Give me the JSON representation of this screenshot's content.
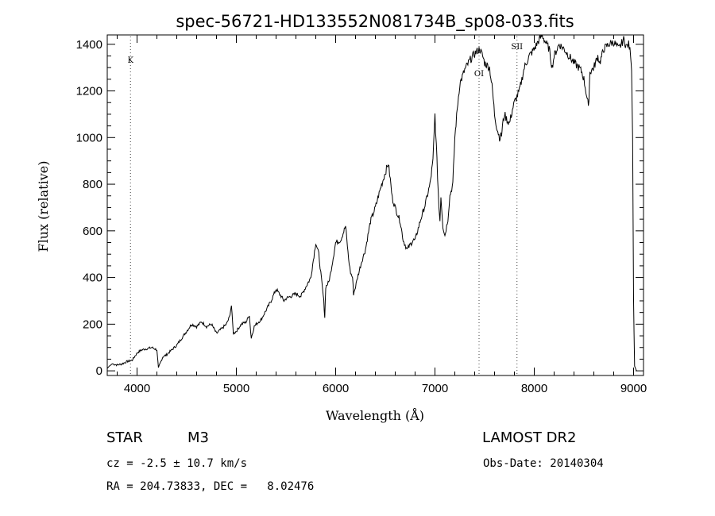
{
  "chart_data": {
    "type": "line",
    "title": "spec-56721-HD133552N081734B_sp08-033.fits",
    "xlabel": "Wavelength (Å)",
    "ylabel": "Flux (relative)",
    "xlim": [
      3700,
      9100
    ],
    "ylim": [
      -20,
      1440
    ],
    "xticks": [
      4000,
      5000,
      6000,
      7000,
      8000,
      9000
    ],
    "yticks": [
      0,
      200,
      400,
      600,
      800,
      1000,
      1200,
      1400
    ],
    "grid": false,
    "line_markers": [
      {
        "label": "K",
        "x": 3934
      },
      {
        "label": "OI",
        "x": 7444
      },
      {
        "label": "SII",
        "x": 7826
      }
    ],
    "series": [
      {
        "x": [
          3700,
          3720,
          3750,
          3800,
          3850,
          3900,
          3950,
          3990,
          4010,
          4050,
          4100,
          4150,
          4200,
          4215,
          4230,
          4260,
          4300,
          4350,
          4400,
          4450,
          4500,
          4550,
          4600,
          4650,
          4700,
          4750,
          4800,
          4850,
          4900,
          4930,
          4950,
          4970,
          5000,
          5050,
          5100,
          5130,
          5150,
          5180,
          5200,
          5250,
          5300,
          5350,
          5400,
          5450,
          5480,
          5500,
          5550,
          5600,
          5650,
          5700,
          5750,
          5800,
          5830,
          5850,
          5880,
          5890,
          5900,
          5930,
          5950,
          6000,
          6050,
          6100,
          6130,
          6150,
          6170,
          6180,
          6200,
          6220,
          6250,
          6270,
          6300,
          6350,
          6400,
          6450,
          6500,
          6530,
          6550,
          6570,
          6600,
          6650,
          6680,
          6700,
          6720,
          6750,
          6780,
          6800,
          6850,
          6900,
          6950,
          6980,
          7000,
          7020,
          7040,
          7050,
          7060,
          7080,
          7100,
          7130,
          7150,
          7180,
          7200,
          7230,
          7250,
          7300,
          7350,
          7400,
          7450,
          7480,
          7500,
          7550,
          7580,
          7600,
          7620,
          7650,
          7670,
          7680,
          7700,
          7720,
          7750,
          7780,
          7800,
          7850,
          7900,
          7950,
          8000,
          8050,
          8080,
          8100,
          8150,
          8180,
          8200,
          8250,
          8300,
          8350,
          8400,
          8450,
          8480,
          8500,
          8520,
          8540,
          8545,
          8560,
          8600,
          8640,
          8660,
          8700,
          8750,
          8800,
          8850,
          8900,
          8930,
          8950,
          8970,
          8980,
          8990,
          9000,
          9010,
          9030
        ],
        "y": [
          10,
          20,
          30,
          25,
          30,
          40,
          45,
          70,
          80,
          90,
          95,
          100,
          90,
          10,
          30,
          60,
          70,
          90,
          110,
          140,
          170,
          200,
          190,
          210,
          190,
          200,
          160,
          180,
          200,
          230,
          280,
          160,
          170,
          200,
          210,
          240,
          140,
          190,
          200,
          220,
          260,
          300,
          350,
          320,
          300,
          310,
          320,
          330,
          320,
          360,
          400,
          550,
          500,
          420,
          300,
          230,
          360,
          380,
          420,
          550,
          560,
          620,
          480,
          420,
          400,
          330,
          360,
          400,
          450,
          480,
          520,
          640,
          700,
          780,
          850,
          890,
          820,
          740,
          700,
          640,
          560,
          540,
          520,
          540,
          560,
          560,
          640,
          710,
          800,
          900,
          1100,
          900,
          700,
          650,
          750,
          620,
          580,
          650,
          750,
          800,
          1000,
          1150,
          1230,
          1290,
          1330,
          1360,
          1380,
          1350,
          1320,
          1300,
          1200,
          1100,
          1050,
          1000,
          1010,
          1050,
          1100,
          1080,
          1060,
          1120,
          1150,
          1200,
          1300,
          1350,
          1380,
          1420,
          1440,
          1420,
          1380,
          1300,
          1350,
          1400,
          1380,
          1350,
          1320,
          1300,
          1280,
          1250,
          1200,
          1150,
          1120,
          1280,
          1300,
          1350,
          1320,
          1380,
          1400,
          1410,
          1380,
          1420,
          1390,
          1400,
          1360,
          1300,
          1000,
          300,
          20,
          0
        ]
      }
    ]
  },
  "info": {
    "object_type": "STAR",
    "subclass": "M3",
    "survey": "LAMOST DR2",
    "redshift": "cz = -2.5 ± 10.7 km/s",
    "obs_date": "Obs-Date: 20140304",
    "coords": "RA = 204.73833, DEC =   8.02476"
  }
}
